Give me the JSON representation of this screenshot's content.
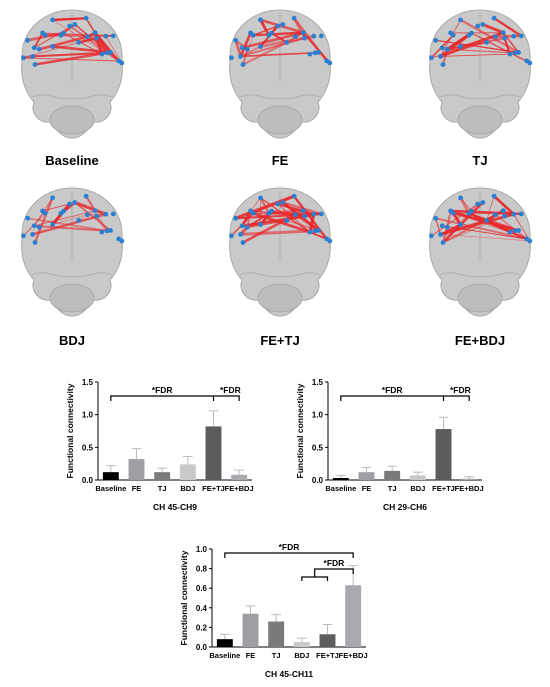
{
  "figure": {
    "conditions": [
      "Baseline",
      "FE",
      "TJ",
      "BDJ",
      "FE+TJ",
      "FE+BDJ"
    ]
  },
  "colors": {
    "bar_fills": [
      "#000000",
      "#9e9ea4",
      "#7a7a7a",
      "#c9c9cc",
      "#5c5c5e",
      "#a9a9ae"
    ],
    "connection_red": "#e8262a",
    "channel_blue": "#2a7fd0",
    "brain_gray": "#c9c9c9"
  },
  "chart_data": [
    {
      "type": "bar",
      "title": "",
      "xlabel": "CH 45-CH9",
      "ylabel": "Functional connectivity",
      "categories": [
        "Baseline",
        "FE",
        "TJ",
        "BDJ",
        "FE+TJ",
        "FE+BDJ"
      ],
      "values": [
        0.12,
        0.32,
        0.12,
        0.24,
        0.82,
        0.08
      ],
      "errors": [
        0.1,
        0.16,
        0.06,
        0.12,
        0.24,
        0.07
      ],
      "ylim": [
        0,
        1.5
      ],
      "yticks": [
        "0.0",
        "0.5",
        "1.0",
        "1.5"
      ],
      "significance": [
        {
          "label": "*FDR",
          "from": 0,
          "to": 4
        },
        {
          "label": "*FDR",
          "from": 4,
          "to": 5
        }
      ]
    },
    {
      "type": "bar",
      "title": "",
      "xlabel": "CH 29-CH6",
      "ylabel": "Functional connectivity",
      "categories": [
        "Baseline",
        "FE",
        "TJ",
        "BDJ",
        "FE+TJ",
        "FE+BDJ"
      ],
      "values": [
        0.03,
        0.12,
        0.14,
        0.07,
        0.78,
        0.02
      ],
      "errors": [
        0.04,
        0.07,
        0.07,
        0.05,
        0.18,
        0.03
      ],
      "ylim": [
        0,
        1.5
      ],
      "yticks": [
        "0.0",
        "0.5",
        "1.0",
        "1.5"
      ],
      "significance": [
        {
          "label": "*FDR",
          "from": 0,
          "to": 4
        },
        {
          "label": "*FDR",
          "from": 4,
          "to": 5
        }
      ]
    },
    {
      "type": "bar",
      "title": "",
      "xlabel": "CH 45-CH11",
      "ylabel": "Functional connectivity",
      "categories": [
        "Baseline",
        "FE",
        "TJ",
        "BDJ",
        "FE+TJ",
        "FE+BDJ"
      ],
      "values": [
        0.08,
        0.34,
        0.26,
        0.05,
        0.13,
        0.63
      ],
      "errors": [
        0.05,
        0.08,
        0.07,
        0.04,
        0.1,
        0.2
      ],
      "ylim": [
        0,
        1.0
      ],
      "yticks": [
        "0.0",
        "0.2",
        "0.4",
        "0.6",
        "0.8",
        "1.0"
      ],
      "significance": [
        {
          "label": "*FDR",
          "from": 0,
          "to": 5
        },
        {
          "label": "*FDR",
          "bracket_from": [
            3,
            4
          ],
          "to": 5
        }
      ]
    }
  ]
}
